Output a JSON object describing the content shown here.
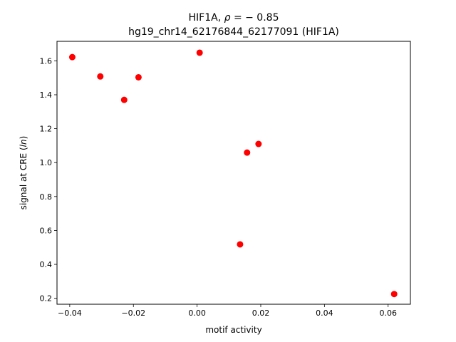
{
  "chart_data": {
    "type": "scatter",
    "title_line1_prefix": "HIF1A, ",
    "title_line1_rho": "ρ",
    "title_line1_value": " = − 0.85",
    "title_line2": "hg19_chr14_62176844_62177091 (HIF1A)",
    "xlabel": "motif activity",
    "ylabel_prefix": "signal at CRE (",
    "ylabel_italic": "ln",
    "ylabel_suffix": ")",
    "xlim": [
      -0.044,
      0.067
    ],
    "ylim": [
      0.165,
      1.715
    ],
    "x_ticks": [
      -0.04,
      -0.02,
      0.0,
      0.02,
      0.04,
      0.06
    ],
    "x_tick_labels": [
      "−0.04",
      "−0.02",
      "0.00",
      "0.02",
      "0.04",
      "0.06"
    ],
    "y_ticks": [
      0.2,
      0.4,
      0.6,
      0.8,
      1.0,
      1.2,
      1.4,
      1.6
    ],
    "y_tick_labels": [
      "0.2",
      "0.4",
      "0.6",
      "0.8",
      "1.0",
      "1.2",
      "1.4",
      "1.6"
    ],
    "point_color": "#ff0000",
    "points": [
      {
        "x": -0.0392,
        "y": 1.622
      },
      {
        "x": -0.0304,
        "y": 1.508
      },
      {
        "x": -0.0229,
        "y": 1.37
      },
      {
        "x": -0.0184,
        "y": 1.503
      },
      {
        "x": 0.0008,
        "y": 1.648
      },
      {
        "x": 0.0135,
        "y": 0.518
      },
      {
        "x": 0.0157,
        "y": 1.059
      },
      {
        "x": 0.0193,
        "y": 1.11
      },
      {
        "x": 0.0619,
        "y": 0.225
      }
    ]
  }
}
